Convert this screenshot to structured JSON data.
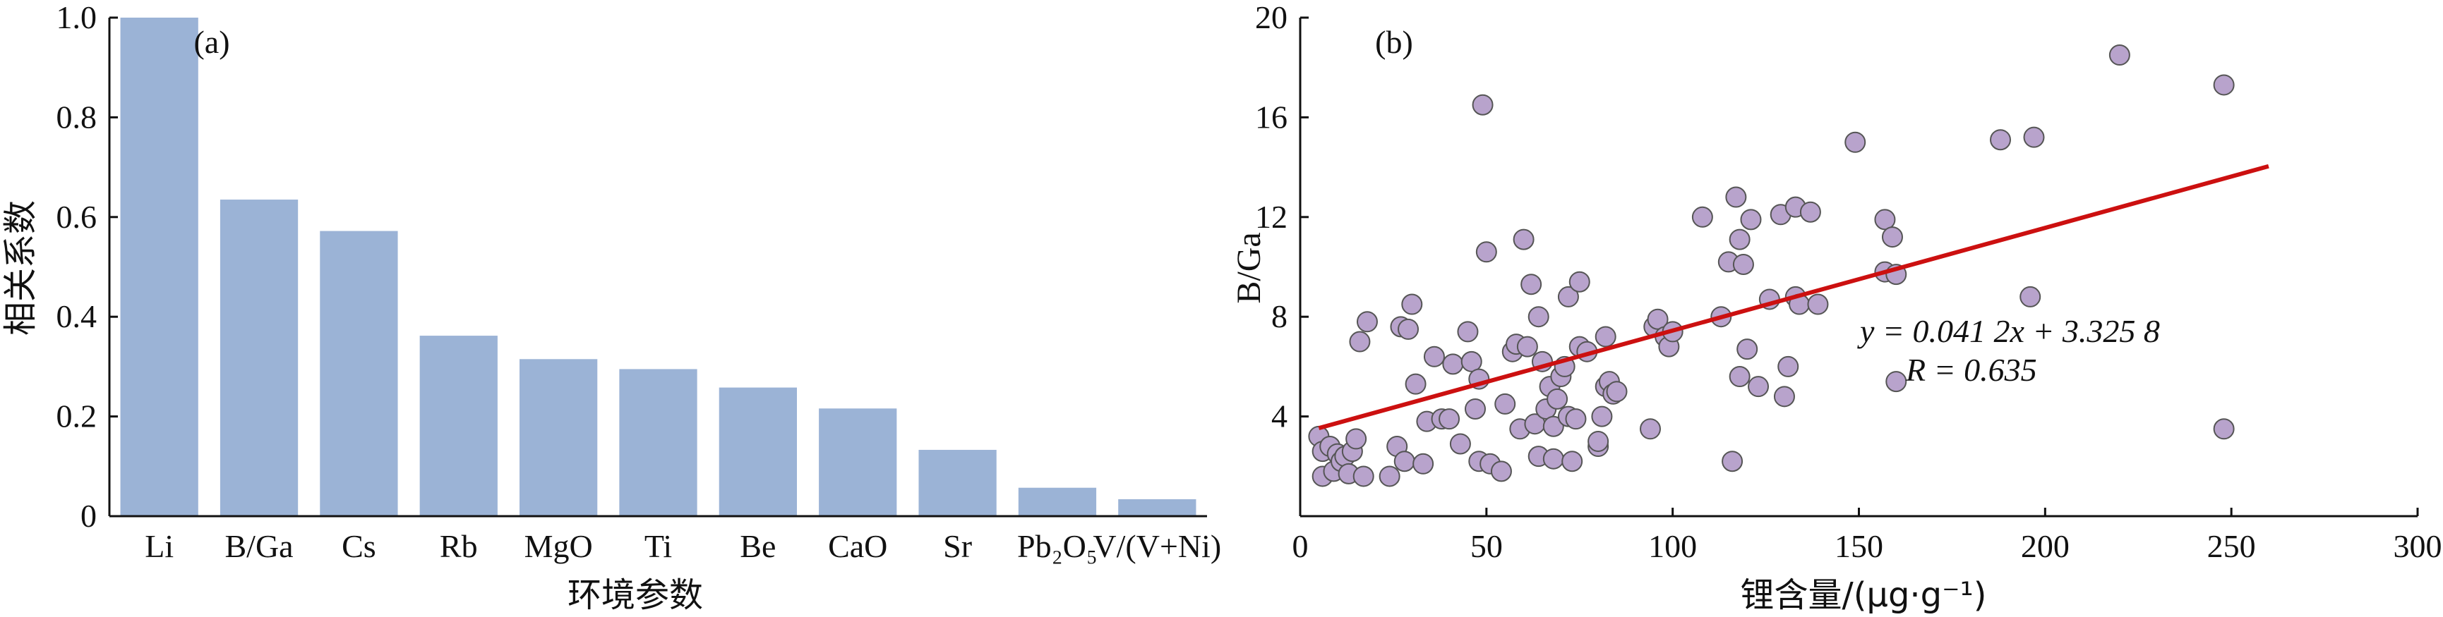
{
  "chart_data": [
    {
      "panel": "(a)",
      "type": "bar",
      "title": "",
      "xlabel": "环境参数",
      "ylabel": "相关系数",
      "ylim": [
        0,
        1.0
      ],
      "yticks": [
        "0",
        "0.2",
        "0.4",
        "0.6",
        "0.8",
        "1.0"
      ],
      "categories": [
        "Li",
        "B/Ga",
        "Cs",
        "Rb",
        "MgO",
        "Ti",
        "Be",
        "CaO",
        "Sr",
        "Pb₂O₅",
        "V/(V+Ni)"
      ],
      "values": [
        1.0,
        0.635,
        0.572,
        0.362,
        0.315,
        0.295,
        0.258,
        0.216,
        0.133,
        0.057,
        0.034
      ],
      "bar_color": "#9bb3d6"
    },
    {
      "panel": "(b)",
      "type": "scatter",
      "title": "",
      "xlabel": "锂含量/(μg·g⁻¹)",
      "ylabel": "B/Ga",
      "xlim": [
        0,
        300
      ],
      "ylim": [
        0,
        20
      ],
      "xticks": [
        "0",
        "50",
        "100",
        "150",
        "200",
        "250",
        "300"
      ],
      "yticks": [
        "4",
        "8",
        "12",
        "16",
        "20"
      ],
      "annotations": [
        "y = 0.041 2x + 3.325 8",
        "R = 0.635"
      ],
      "point_color": "#b8a3cc",
      "point_edge": "#555555",
      "fit_color": "#cc1010",
      "fit": {
        "slope": 0.0412,
        "intercept": 3.3258,
        "x_range": [
          5,
          260
        ]
      },
      "x": [
        5,
        6,
        6,
        8,
        9,
        10,
        11,
        12,
        13,
        14,
        15,
        16,
        17,
        18,
        24,
        26,
        27,
        28,
        29,
        30,
        31,
        33,
        34,
        36,
        38,
        40,
        41,
        43,
        45,
        46,
        47,
        48,
        48,
        49,
        50,
        51,
        54,
        55,
        57,
        58,
        59,
        60,
        61,
        62,
        63,
        64,
        64,
        65,
        66,
        67,
        68,
        68,
        69,
        70,
        71,
        72,
        72,
        73,
        74,
        75,
        75,
        77,
        80,
        80,
        81,
        82,
        82,
        83,
        84,
        85,
        94,
        95,
        96,
        98,
        99,
        100,
        108,
        113,
        115,
        116,
        117,
        118,
        118,
        119,
        120,
        121,
        123,
        126,
        129,
        130,
        131,
        133,
        133,
        134,
        137,
        139,
        149,
        157,
        157,
        159,
        160,
        160,
        188,
        196,
        197,
        220,
        248,
        248
      ],
      "y": [
        3.2,
        2.6,
        1.6,
        2.8,
        1.8,
        2.5,
        2.2,
        2.4,
        1.7,
        2.6,
        3.1,
        7.0,
        1.6,
        7.8,
        1.6,
        2.8,
        7.6,
        2.2,
        7.5,
        8.5,
        5.3,
        2.1,
        3.8,
        6.4,
        3.9,
        3.9,
        6.1,
        2.9,
        7.4,
        6.2,
        4.3,
        5.5,
        2.2,
        16.5,
        10.6,
        2.1,
        1.8,
        4.5,
        6.6,
        6.9,
        3.5,
        11.1,
        6.8,
        9.3,
        3.7,
        2.4,
        8.0,
        6.2,
        4.3,
        5.2,
        2.3,
        3.6,
        4.7,
        5.6,
        6.0,
        8.8,
        4.0,
        2.2,
        3.9,
        6.8,
        9.4,
        6.6,
        2.8,
        3.0,
        4.0,
        5.2,
        7.2,
        5.4,
        4.9,
        5.0,
        3.5,
        7.6,
        7.9,
        7.2,
        6.8,
        7.4,
        12.0,
        8.0,
        10.2,
        2.2,
        12.8,
        11.1,
        5.6,
        10.1,
        6.7,
        11.9,
        5.2,
        8.7,
        12.1,
        4.8,
        6.0,
        8.8,
        12.4,
        8.5,
        12.2,
        8.5,
        15.0,
        11.9,
        9.8,
        11.2,
        5.4,
        9.7,
        15.1,
        8.8,
        15.2,
        18.5,
        17.3,
        3.5
      ]
    }
  ]
}
